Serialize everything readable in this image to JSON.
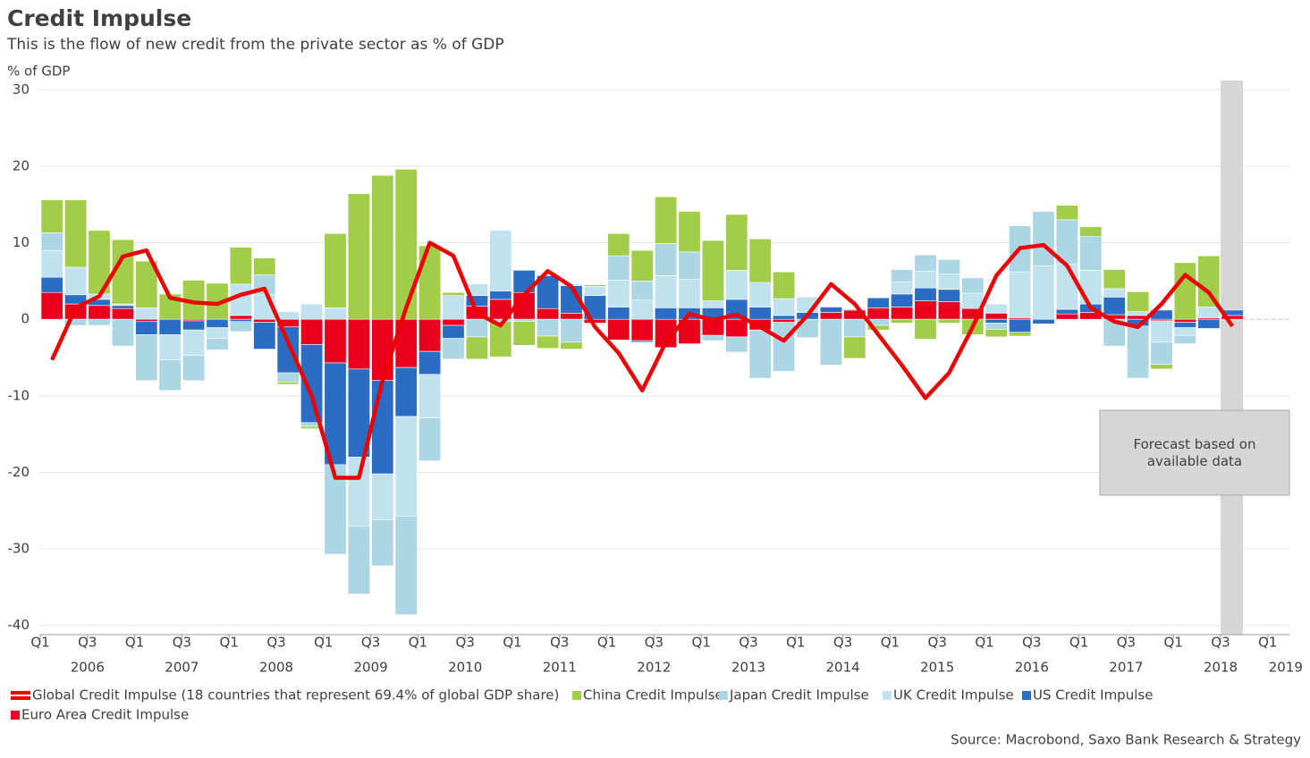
{
  "chart_data": {
    "type": "stacked-bar-line",
    "title": "Credit Impulse",
    "subtitle": "This is the flow of new credit from the private sector as % of GDP",
    "y_axis_label": "% of GDP",
    "source": "Source: Macrobond, Saxo Bank Research & Strategy",
    "annotation": "Forecast based on available data",
    "ylim": [
      -41.2,
      31.2
    ],
    "yticks": [
      -40,
      -30,
      -20,
      -10,
      0,
      10,
      20,
      30
    ],
    "grid": true,
    "xticks": [
      {
        "label": "Q1"
      },
      {
        "label": "Q3",
        "year": "2006"
      },
      {
        "label": "Q1"
      },
      {
        "label": "Q3",
        "year": "2007"
      },
      {
        "label": "Q1"
      },
      {
        "label": "Q3",
        "year": "2008"
      },
      {
        "label": "Q1"
      },
      {
        "label": "Q3",
        "year": "2009"
      },
      {
        "label": "Q1"
      },
      {
        "label": "Q3",
        "year": "2010"
      },
      {
        "label": "Q1"
      },
      {
        "label": "Q3",
        "year": "2011"
      },
      {
        "label": "Q1"
      },
      {
        "label": "Q3",
        "year": "2012"
      },
      {
        "label": "Q1"
      },
      {
        "label": "Q3",
        "year": "2013"
      },
      {
        "label": "Q1"
      },
      {
        "label": "Q3",
        "year": "2014"
      },
      {
        "label": "Q1"
      },
      {
        "label": "Q3",
        "year": "2015"
      },
      {
        "label": "Q1"
      },
      {
        "label": "Q3",
        "year": "2016"
      },
      {
        "label": "Q1"
      },
      {
        "label": "Q3",
        "year": "2017"
      },
      {
        "label": "Q1"
      },
      {
        "label": "Q3",
        "year": "2018"
      },
      {
        "label": "Q1",
        "year": "2019"
      }
    ],
    "line_series": {
      "name": "Global Credit Impulse (18 countries that represent 69.4% of global GDP share)",
      "color": "#ee0000",
      "values": [
        -5.3,
        1.5,
        3,
        8.2,
        9,
        2.8,
        2.2,
        2,
        3.2,
        4,
        -3,
        -10,
        -20.7,
        -20.7,
        -8,
        1.5,
        10,
        8.3,
        0.8,
        -0.8,
        3.2,
        6.3,
        4.3,
        -1,
        -4.4,
        -9.3,
        -3,
        0.7,
        -0.1,
        0.6,
        -1,
        -2.8,
        0.5,
        4.6,
        2,
        -2,
        -6,
        -10.3,
        -7,
        -1,
        5.7,
        9.3,
        9.7,
        7,
        1.5,
        -0.3,
        -1,
        2,
        5.8,
        3.5,
        -0.9
      ]
    },
    "series": [
      {
        "name": "Euro Area Credit Impulse",
        "color": "#e8001c",
        "values": [
          3.5,
          2,
          1.8,
          1.4,
          -0.3,
          0,
          -0.2,
          0,
          0.5,
          -0.4,
          -1,
          -3.3,
          -5.7,
          -6.5,
          -8,
          -6.3,
          -4.2,
          -0.8,
          1.7,
          2.6,
          3.5,
          1.4,
          0.8,
          -0.5,
          -2.7,
          -2.8,
          -3.7,
          -3.2,
          -2.1,
          -2.3,
          -1.4,
          -0.4,
          0,
          0.9,
          1.2,
          1.5,
          1.6,
          2.4,
          2.3,
          1.4,
          0.8,
          0.2,
          0,
          0.7,
          0.9,
          0.6,
          0.5,
          -0.2,
          -0.4,
          0.2,
          0.5
        ]
      },
      {
        "name": "US Credit Impulse",
        "color": "#2b6cc4",
        "values": [
          2,
          1.2,
          0.8,
          0.4,
          -1.7,
          -2,
          -1.2,
          -1.1,
          -0.3,
          -3.5,
          -6,
          -10.2,
          -13.3,
          -11.5,
          -12.2,
          -6.4,
          -3,
          -1.7,
          1.4,
          1.1,
          2.9,
          4.3,
          3.6,
          3.1,
          1.6,
          -0.2,
          1.5,
          1.5,
          1.5,
          2.6,
          1.6,
          0.5,
          0.9,
          0.7,
          0.1,
          1.3,
          1.7,
          1.7,
          1.6,
          0,
          -0.5,
          -1.7,
          -0.6,
          0.6,
          1.1,
          2.3,
          -0.9,
          1.2,
          -0.7,
          -1.2,
          0.7
        ]
      },
      {
        "name": "UK Credit Impulse",
        "color": "#bfe2ee",
        "values": [
          3.5,
          3.6,
          0.7,
          0.2,
          1.5,
          -3.3,
          -3.3,
          -1.4,
          4.1,
          3.2,
          1,
          2,
          1.5,
          -9,
          -6,
          -13,
          -5.7,
          3.1,
          1.5,
          7.9,
          0,
          0,
          0.2,
          1.2,
          3.5,
          2.5,
          4.2,
          3.7,
          0.9,
          3.8,
          3.2,
          2.2,
          2,
          0,
          0,
          0,
          1.6,
          2.2,
          2,
          2,
          1.2,
          6,
          7,
          5.9,
          4.4,
          1.1,
          0.5,
          -2.8,
          -1,
          1.4,
          0
        ]
      },
      {
        "name": "Japan Credit Impulse",
        "color": "#acd6e4",
        "values": [
          2.3,
          -0.8,
          -0.8,
          -3.5,
          -6,
          -4,
          -3.3,
          -1.5,
          -1.3,
          2.6,
          -1.2,
          -0.5,
          -11.7,
          -8.9,
          -6,
          -12.9,
          -5.6,
          -2.7,
          -2.3,
          -0.3,
          -0.3,
          -2.2,
          -3,
          0,
          3.2,
          2.5,
          4.2,
          3.6,
          -0.7,
          -2,
          -6.3,
          -6.4,
          -2.4,
          -6,
          -2.3,
          -0.8,
          1.6,
          2.1,
          1.9,
          2,
          -0.8,
          6,
          7.1,
          5.8,
          4.4,
          -3.5,
          -6.8,
          -2.9,
          -1.1,
          0,
          0
        ]
      },
      {
        "name": "China Credit Impulse",
        "color": "#a2cd48",
        "values": [
          4.3,
          8.8,
          8.3,
          8.4,
          6.1,
          3.3,
          5.1,
          4.7,
          4.8,
          2.2,
          -0.3,
          -0.3,
          9.7,
          16.4,
          18.8,
          19.6,
          9.6,
          0.4,
          -2.9,
          -4.6,
          -3.1,
          -1.6,
          -0.9,
          0.2,
          2.9,
          4,
          6.1,
          5.3,
          7.9,
          7.3,
          5.7,
          3.5,
          0,
          0,
          -2.8,
          -0.6,
          -0.5,
          -2.6,
          -0.5,
          -2,
          -1,
          -0.5,
          0,
          1.9,
          1.3,
          2.5,
          2.6,
          -0.6,
          7.4,
          6.7,
          0
        ]
      }
    ]
  }
}
